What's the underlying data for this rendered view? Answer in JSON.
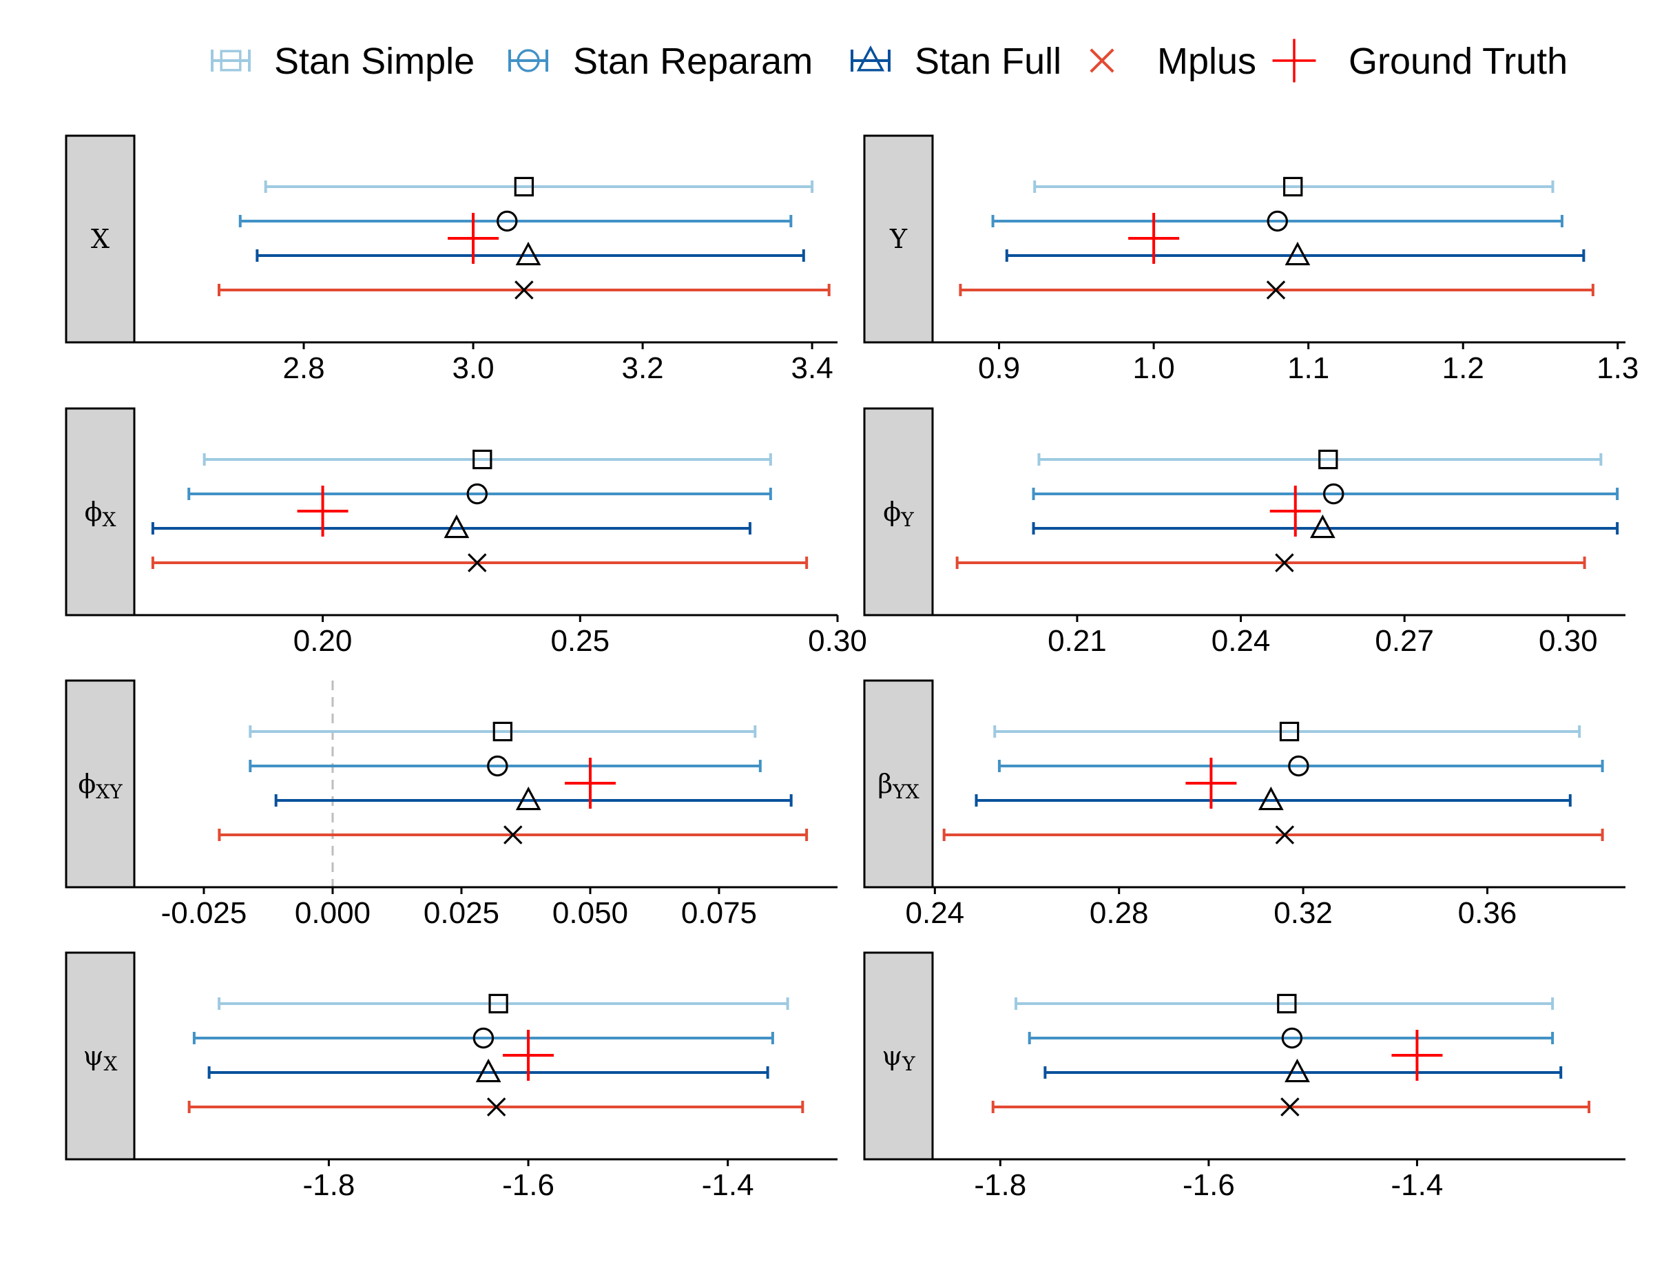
{
  "legend": [
    {
      "key": "simple",
      "label": "Stan Simple",
      "color": "#9ecae1",
      "shape": "square"
    },
    {
      "key": "reparam",
      "label": "Stan Reparam",
      "color": "#4292c6",
      "shape": "circle"
    },
    {
      "key": "full",
      "label": "Stan Full",
      "color": "#08519c",
      "shape": "triangle"
    },
    {
      "key": "mplus",
      "label": "Mplus",
      "color": "#e34a33",
      "shape": "x"
    },
    {
      "key": "truth",
      "label": "Ground Truth",
      "color": "#ff0000",
      "shape": "plus"
    }
  ],
  "chart_data": [
    {
      "type": "forest",
      "panel": "X",
      "strip": {
        "main": "X",
        "sub": ""
      },
      "xlim": [
        2.6,
        3.43
      ],
      "ticks": [
        2.8,
        3.0,
        3.2,
        3.4
      ],
      "tick_labels": [
        "2.8",
        "3.0",
        "3.2",
        "3.4"
      ],
      "truth": 3.0,
      "zero_line": false,
      "series": [
        {
          "key": "simple",
          "lo": 2.755,
          "est": 3.06,
          "hi": 3.4
        },
        {
          "key": "reparam",
          "lo": 2.725,
          "est": 3.04,
          "hi": 3.375
        },
        {
          "key": "full",
          "lo": 2.745,
          "est": 3.065,
          "hi": 3.39
        },
        {
          "key": "mplus",
          "lo": 2.7,
          "est": 3.06,
          "hi": 3.42
        }
      ]
    },
    {
      "type": "forest",
      "panel": "Y",
      "strip": {
        "main": "Y",
        "sub": ""
      },
      "xlim": [
        0.857,
        1.305
      ],
      "ticks": [
        0.9,
        1.0,
        1.1,
        1.2,
        1.3
      ],
      "tick_labels": [
        "0.9",
        "1.0",
        "1.1",
        "1.2",
        "1.3"
      ],
      "truth": 1.0,
      "zero_line": false,
      "series": [
        {
          "key": "simple",
          "lo": 0.923,
          "est": 1.09,
          "hi": 1.258
        },
        {
          "key": "reparam",
          "lo": 0.896,
          "est": 1.08,
          "hi": 1.264
        },
        {
          "key": "full",
          "lo": 0.905,
          "est": 1.093,
          "hi": 1.278
        },
        {
          "key": "mplus",
          "lo": 0.875,
          "est": 1.079,
          "hi": 1.284
        }
      ]
    },
    {
      "type": "forest",
      "panel": "phi_X",
      "strip": {
        "main": "ϕ",
        "sub": "X"
      },
      "xlim": [
        0.1634,
        0.3
      ],
      "ticks": [
        0.2,
        0.25,
        0.3
      ],
      "tick_labels": [
        "0.20",
        "0.25",
        "0.30"
      ],
      "truth": 0.2,
      "zero_line": false,
      "series": [
        {
          "key": "simple",
          "lo": 0.177,
          "est": 0.231,
          "hi": 0.287
        },
        {
          "key": "reparam",
          "lo": 0.174,
          "est": 0.23,
          "hi": 0.287
        },
        {
          "key": "full",
          "lo": 0.167,
          "est": 0.226,
          "hi": 0.283
        },
        {
          "key": "mplus",
          "lo": 0.167,
          "est": 0.23,
          "hi": 0.294
        }
      ]
    },
    {
      "type": "forest",
      "panel": "phi_Y",
      "strip": {
        "main": "ϕ",
        "sub": "Y"
      },
      "xlim": [
        0.1835,
        0.3105
      ],
      "ticks": [
        0.21,
        0.24,
        0.27,
        0.3
      ],
      "tick_labels": [
        "0.21",
        "0.24",
        "0.27",
        "0.30"
      ],
      "truth": 0.25,
      "zero_line": false,
      "series": [
        {
          "key": "simple",
          "lo": 0.203,
          "est": 0.256,
          "hi": 0.306
        },
        {
          "key": "reparam",
          "lo": 0.202,
          "est": 0.257,
          "hi": 0.309
        },
        {
          "key": "full",
          "lo": 0.202,
          "est": 0.255,
          "hi": 0.309
        },
        {
          "key": "mplus",
          "lo": 0.188,
          "est": 0.248,
          "hi": 0.303
        }
      ]
    },
    {
      "type": "forest",
      "panel": "phi_XY",
      "strip": {
        "main": "ϕ",
        "sub": "XY"
      },
      "xlim": [
        -0.0385,
        0.098
      ],
      "ticks": [
        -0.025,
        0.0,
        0.025,
        0.05,
        0.075
      ],
      "tick_labels": [
        "-0.025",
        "0.000",
        "0.025",
        "0.050",
        "0.075"
      ],
      "truth": 0.05,
      "zero_line": true,
      "series": [
        {
          "key": "simple",
          "lo": -0.016,
          "est": 0.033,
          "hi": 0.082
        },
        {
          "key": "reparam",
          "lo": -0.016,
          "est": 0.032,
          "hi": 0.083
        },
        {
          "key": "full",
          "lo": -0.011,
          "est": 0.038,
          "hi": 0.089
        },
        {
          "key": "mplus",
          "lo": -0.022,
          "est": 0.035,
          "hi": 0.092
        }
      ]
    },
    {
      "type": "forest",
      "panel": "beta_YX",
      "strip": {
        "main": "β",
        "sub": "YX"
      },
      "xlim": [
        0.2395,
        0.39
      ],
      "ticks": [
        0.24,
        0.28,
        0.32,
        0.36
      ],
      "tick_labels": [
        "0.24",
        "0.28",
        "0.32",
        "0.36"
      ],
      "truth": 0.3,
      "zero_line": false,
      "series": [
        {
          "key": "simple",
          "lo": 0.253,
          "est": 0.317,
          "hi": 0.38
        },
        {
          "key": "reparam",
          "lo": 0.254,
          "est": 0.319,
          "hi": 0.385
        },
        {
          "key": "full",
          "lo": 0.249,
          "est": 0.313,
          "hi": 0.378
        },
        {
          "key": "mplus",
          "lo": 0.242,
          "est": 0.316,
          "hi": 0.385
        }
      ]
    },
    {
      "type": "forest",
      "panel": "psi_X",
      "strip": {
        "main": "ψ",
        "sub": "X"
      },
      "xlim": [
        -1.995,
        -1.29
      ],
      "ticks": [
        -1.8,
        -1.6,
        -1.4
      ],
      "tick_labels": [
        "-1.8",
        "-1.6",
        "-1.4"
      ],
      "truth": -1.6,
      "zero_line": false,
      "series": [
        {
          "key": "simple",
          "lo": -1.91,
          "est": -1.63,
          "hi": -1.34
        },
        {
          "key": "reparam",
          "lo": -1.935,
          "est": -1.645,
          "hi": -1.355
        },
        {
          "key": "full",
          "lo": -1.92,
          "est": -1.64,
          "hi": -1.36
        },
        {
          "key": "mplus",
          "lo": -1.94,
          "est": -1.632,
          "hi": -1.325
        }
      ]
    },
    {
      "type": "forest",
      "panel": "psi_Y",
      "strip": {
        "main": "ψ",
        "sub": "Y"
      },
      "xlim": [
        -1.865,
        -1.2
      ],
      "ticks": [
        -1.8,
        -1.6,
        -1.4
      ],
      "tick_labels": [
        "-1.8",
        "-1.6",
        "-1.4"
      ],
      "truth": -1.4,
      "zero_line": false,
      "series": [
        {
          "key": "simple",
          "lo": -1.785,
          "est": -1.525,
          "hi": -1.27
        },
        {
          "key": "reparam",
          "lo": -1.772,
          "est": -1.52,
          "hi": -1.27
        },
        {
          "key": "full",
          "lo": -1.757,
          "est": -1.515,
          "hi": -1.262
        },
        {
          "key": "mplus",
          "lo": -1.807,
          "est": -1.522,
          "hi": -1.235
        }
      ]
    }
  ]
}
